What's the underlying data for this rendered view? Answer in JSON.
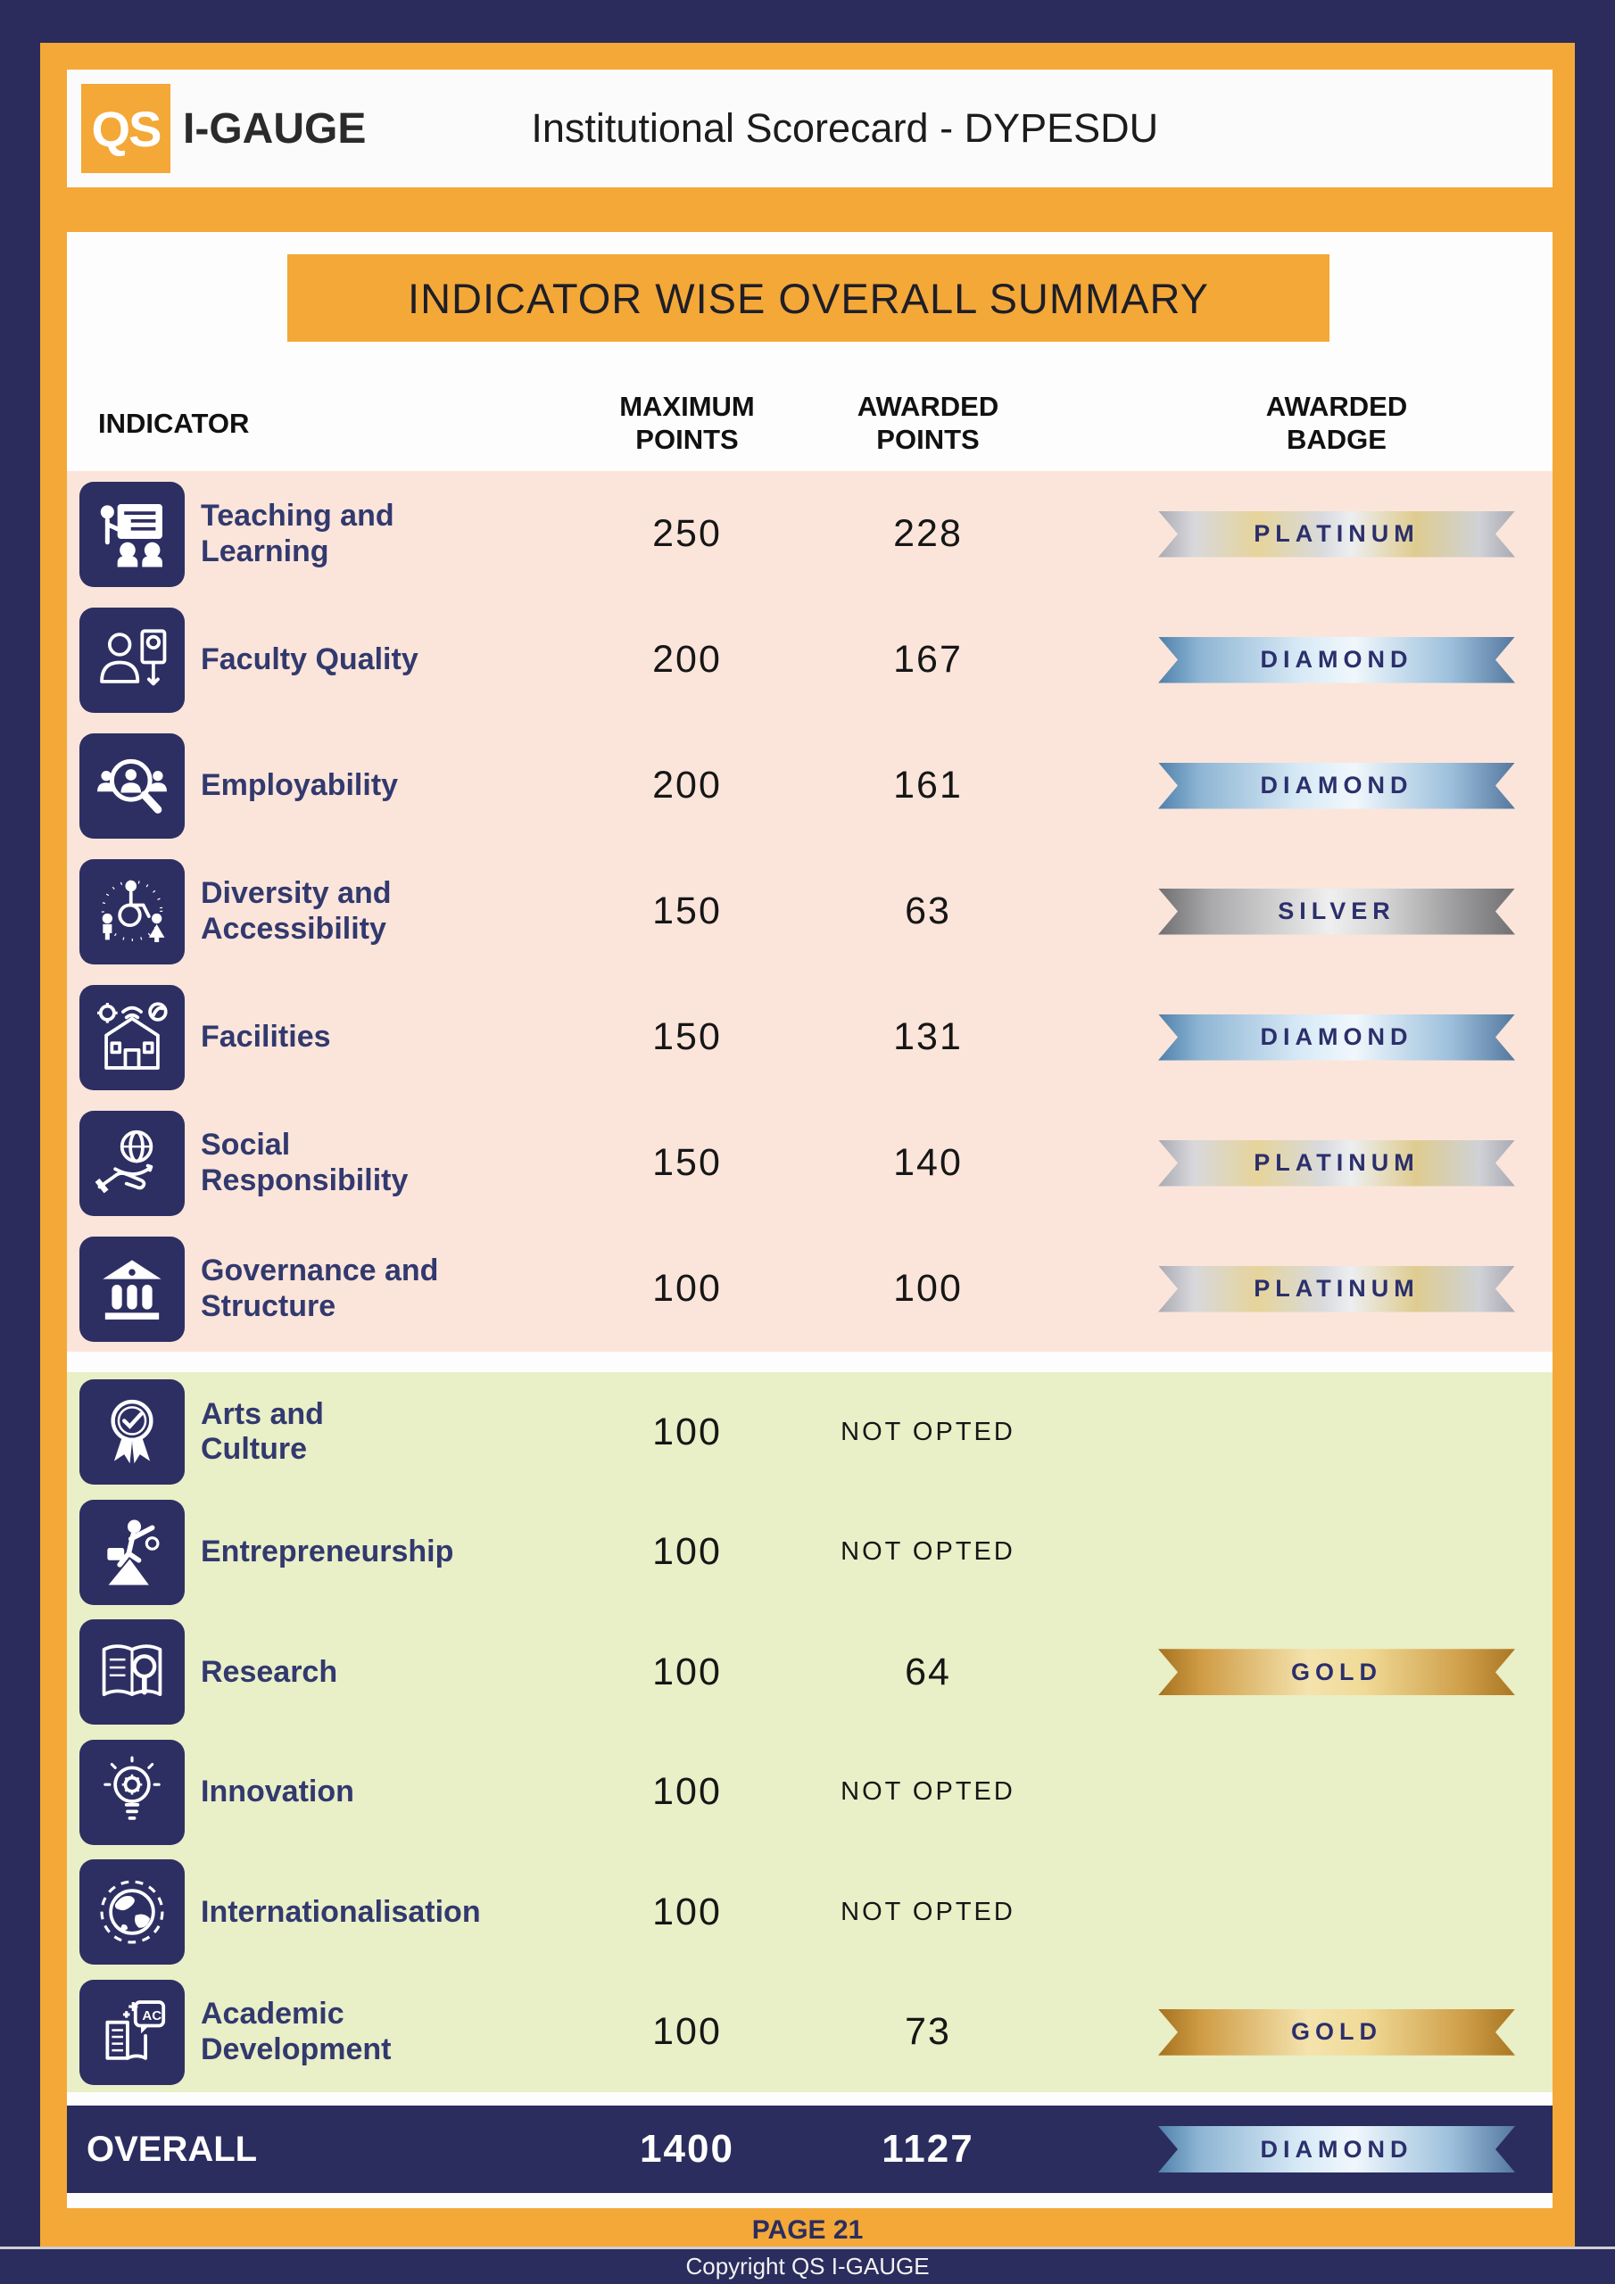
{
  "header": {
    "logo_qs": "QS",
    "logo_brand": "I-GAUGE",
    "title": "Institutional Scorecard - DYPESDU"
  },
  "banner": {
    "title": "INDICATOR WISE OVERALL SUMMARY"
  },
  "columns": {
    "indicator": "INDICATOR",
    "max_points": "MAXIMUM\nPOINTS",
    "awarded_points": "AWARDED\nPOINTS",
    "awarded_badge": "AWARDED\nBADGE"
  },
  "sections": [
    {
      "name": "opted-indicators",
      "rows": [
        {
          "icon": "teaching-learning-icon",
          "label": "Teaching and\nLearning",
          "max": "250",
          "awarded": "228",
          "badge": "PLATINUM"
        },
        {
          "icon": "faculty-quality-icon",
          "label": "Faculty Quality",
          "max": "200",
          "awarded": "167",
          "badge": "DIAMOND"
        },
        {
          "icon": "employability-icon",
          "label": "Employability",
          "max": "200",
          "awarded": "161",
          "badge": "DIAMOND"
        },
        {
          "icon": "diversity-accessibility-icon",
          "label": "Diversity and\nAccessibility",
          "max": "150",
          "awarded": "63",
          "badge": "SILVER"
        },
        {
          "icon": "facilities-icon",
          "label": "Facilities",
          "max": "150",
          "awarded": "131",
          "badge": "DIAMOND"
        },
        {
          "icon": "social-responsibility-icon",
          "label": "Social\nResponsibility",
          "max": "150",
          "awarded": "140",
          "badge": "PLATINUM"
        },
        {
          "icon": "governance-structure-icon",
          "label": "Governance and\nStructure",
          "max": "100",
          "awarded": "100",
          "badge": "PLATINUM"
        }
      ]
    },
    {
      "name": "optional-indicators",
      "rows": [
        {
          "icon": "arts-culture-icon",
          "label": "Arts and\nCulture",
          "max": "100",
          "awarded": "NOT OPTED",
          "badge": null
        },
        {
          "icon": "entrepreneurship-icon",
          "label": "Entrepreneurship",
          "max": "100",
          "awarded": "NOT OPTED",
          "badge": null
        },
        {
          "icon": "research-icon",
          "label": "Research",
          "max": "100",
          "awarded": "64",
          "badge": "GOLD"
        },
        {
          "icon": "innovation-icon",
          "label": "Innovation",
          "max": "100",
          "awarded": "NOT OPTED",
          "badge": null
        },
        {
          "icon": "internationalisation-icon",
          "label": "Internationalisation",
          "max": "100",
          "awarded": "NOT OPTED",
          "badge": null
        },
        {
          "icon": "academic-development-icon",
          "label": "Academic\nDevelopment",
          "max": "100",
          "awarded": "73",
          "badge": "GOLD"
        }
      ]
    }
  ],
  "overall": {
    "label": "OVERALL",
    "max": "1400",
    "awarded": "1127",
    "badge": "DIAMOND"
  },
  "footer": {
    "page": "PAGE 21",
    "copyright": "Copyright QS I-GAUGE"
  },
  "colors": {
    "accent_orange": "#F4A837",
    "navy": "#2B2D5E",
    "opted_section_bg": "#FBE5DA",
    "optional_section_bg": "#E9EFC6",
    "badge_text": "#2B2F6B"
  }
}
